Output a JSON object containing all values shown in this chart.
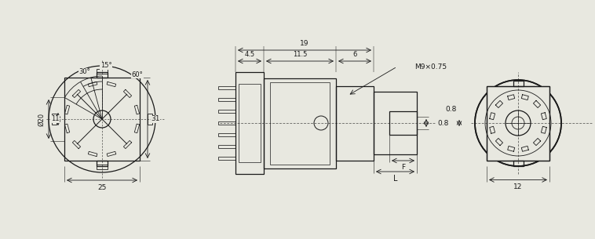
{
  "bg_color": "#e8e8e0",
  "line_color": "#1a1a1a",
  "lw": 0.9,
  "tlw": 0.4,
  "annotations": {
    "angle_30": "30°",
    "angle_15": "15°",
    "angle_60": "60°",
    "dim_phi20": "Ø20",
    "dim_11": "11",
    "dim_31": "31",
    "dim_25": "25",
    "dim_L": "L",
    "dim_F": "F",
    "dim_45": "4.5",
    "dim_115": "11.5",
    "dim_6": "6",
    "dim_19": "19",
    "dim_M9": "M9×0.75",
    "dim_08": "0.8",
    "dim_12": "12"
  }
}
